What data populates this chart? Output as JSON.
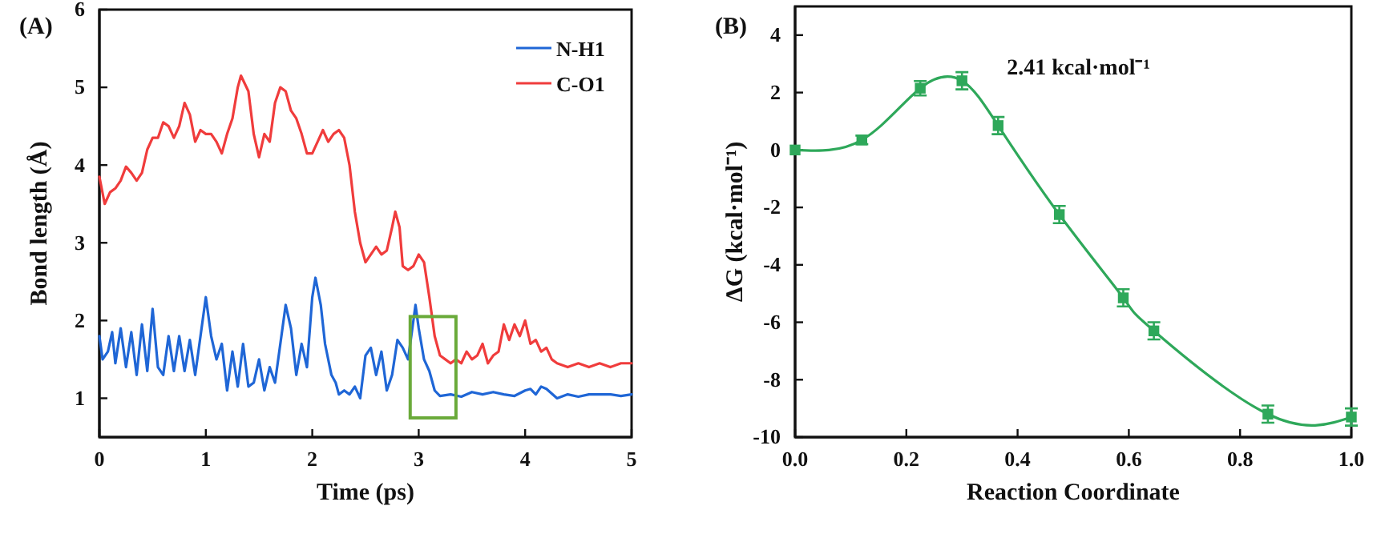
{
  "chart_data": [
    {
      "type": "line",
      "title": "(A)",
      "xlabel": "Time (ps)",
      "ylabel": "Bond length (Å)",
      "xlim": [
        0,
        5
      ],
      "ylim": [
        0.5,
        6
      ],
      "xticks": [
        0,
        1,
        2,
        3,
        4,
        5
      ],
      "yticks": [
        1,
        2,
        3,
        4,
        5,
        6
      ],
      "legend": "top right",
      "grid": false,
      "series": [
        {
          "name": "N-H1",
          "color": "#1f66d6",
          "x": [
            0,
            0.03,
            0.08,
            0.12,
            0.15,
            0.2,
            0.25,
            0.3,
            0.35,
            0.4,
            0.45,
            0.5,
            0.55,
            0.6,
            0.65,
            0.7,
            0.75,
            0.8,
            0.85,
            0.9,
            0.95,
            1.0,
            1.05,
            1.1,
            1.15,
            1.2,
            1.25,
            1.3,
            1.35,
            1.4,
            1.45,
            1.5,
            1.55,
            1.6,
            1.65,
            1.7,
            1.75,
            1.8,
            1.85,
            1.9,
            1.95,
            2.0,
            2.03,
            2.08,
            2.12,
            2.18,
            2.22,
            2.25,
            2.3,
            2.35,
            2.4,
            2.45,
            2.5,
            2.55,
            2.6,
            2.65,
            2.7,
            2.75,
            2.8,
            2.85,
            2.9,
            2.97,
            3.0,
            3.05,
            3.1,
            3.15,
            3.2,
            3.3,
            3.4,
            3.5,
            3.6,
            3.7,
            3.8,
            3.9,
            4.0,
            4.05,
            4.1,
            4.15,
            4.2,
            4.3,
            4.4,
            4.5,
            4.6,
            4.7,
            4.8,
            4.9,
            5.0
          ],
          "values": [
            1.8,
            1.5,
            1.6,
            1.85,
            1.45,
            1.9,
            1.4,
            1.85,
            1.3,
            1.95,
            1.35,
            2.15,
            1.4,
            1.3,
            1.8,
            1.35,
            1.8,
            1.35,
            1.75,
            1.3,
            1.8,
            2.3,
            1.8,
            1.5,
            1.7,
            1.1,
            1.6,
            1.15,
            1.7,
            1.15,
            1.2,
            1.5,
            1.1,
            1.4,
            1.2,
            1.7,
            2.2,
            1.9,
            1.3,
            1.7,
            1.4,
            2.3,
            2.55,
            2.2,
            1.7,
            1.3,
            1.2,
            1.05,
            1.1,
            1.05,
            1.15,
            1.0,
            1.55,
            1.65,
            1.3,
            1.6,
            1.1,
            1.3,
            1.75,
            1.65,
            1.5,
            2.2,
            1.9,
            1.5,
            1.35,
            1.1,
            1.03,
            1.05,
            1.02,
            1.08,
            1.05,
            1.08,
            1.05,
            1.03,
            1.1,
            1.12,
            1.05,
            1.15,
            1.12,
            1.0,
            1.05,
            1.02,
            1.05,
            1.05,
            1.05,
            1.03,
            1.05
          ]
        },
        {
          "name": "C-O1",
          "color": "#f03c3c",
          "x": [
            0,
            0.05,
            0.1,
            0.15,
            0.2,
            0.25,
            0.3,
            0.35,
            0.4,
            0.45,
            0.5,
            0.55,
            0.6,
            0.65,
            0.7,
            0.75,
            0.8,
            0.85,
            0.9,
            0.95,
            1.0,
            1.05,
            1.1,
            1.15,
            1.2,
            1.25,
            1.3,
            1.33,
            1.4,
            1.45,
            1.5,
            1.55,
            1.6,
            1.65,
            1.7,
            1.75,
            1.8,
            1.85,
            1.9,
            1.95,
            2.0,
            2.05,
            2.1,
            2.15,
            2.2,
            2.25,
            2.3,
            2.35,
            2.4,
            2.45,
            2.5,
            2.55,
            2.6,
            2.65,
            2.7,
            2.75,
            2.78,
            2.82,
            2.85,
            2.9,
            2.95,
            3.0,
            3.05,
            3.1,
            3.15,
            3.2,
            3.25,
            3.3,
            3.35,
            3.4,
            3.45,
            3.5,
            3.55,
            3.6,
            3.65,
            3.7,
            3.75,
            3.8,
            3.85,
            3.9,
            3.95,
            4.0,
            4.05,
            4.1,
            4.15,
            4.2,
            4.25,
            4.3,
            4.4,
            4.5,
            4.6,
            4.7,
            4.8,
            4.9,
            5.0
          ],
          "values": [
            3.85,
            3.5,
            3.65,
            3.7,
            3.8,
            3.98,
            3.9,
            3.8,
            3.9,
            4.2,
            4.35,
            4.35,
            4.55,
            4.5,
            4.35,
            4.5,
            4.8,
            4.65,
            4.3,
            4.45,
            4.4,
            4.4,
            4.3,
            4.15,
            4.4,
            4.6,
            5.0,
            5.15,
            4.95,
            4.4,
            4.1,
            4.4,
            4.3,
            4.8,
            5.0,
            4.95,
            4.7,
            4.6,
            4.4,
            4.15,
            4.15,
            4.3,
            4.45,
            4.3,
            4.4,
            4.45,
            4.35,
            4.0,
            3.4,
            3.0,
            2.75,
            2.85,
            2.95,
            2.85,
            2.9,
            3.2,
            3.4,
            3.2,
            2.7,
            2.65,
            2.7,
            2.85,
            2.75,
            2.3,
            1.8,
            1.55,
            1.5,
            1.45,
            1.5,
            1.45,
            1.6,
            1.5,
            1.55,
            1.7,
            1.45,
            1.55,
            1.6,
            1.95,
            1.75,
            1.95,
            1.8,
            2.0,
            1.7,
            1.75,
            1.6,
            1.65,
            1.5,
            1.45,
            1.4,
            1.45,
            1.4,
            1.45,
            1.4,
            1.45,
            1.45
          ]
        }
      ]
    },
    {
      "type": "line",
      "title": "(B)",
      "xlabel": "Reaction Coordinate",
      "ylabel": "ΔG (kcal·mol⁻¹)",
      "xlim": [
        0,
        1
      ],
      "ylim": [
        -10,
        5
      ],
      "xticks": [
        {
          "value": 0,
          "label": "0.0"
        },
        {
          "value": 0.2,
          "label": "0.2"
        },
        {
          "value": 0.4,
          "label": "0.4"
        },
        {
          "value": 0.6,
          "label": "0.6"
        },
        {
          "value": 0.8,
          "label": "0.8"
        },
        {
          "value": 1,
          "label": "1.0"
        }
      ],
      "yticks": [
        -10,
        -8,
        -6,
        -4,
        -2,
        0,
        2,
        4
      ],
      "marker": "square",
      "grid": false,
      "legend": false,
      "x": [
        0,
        0.12,
        0.225,
        0.3,
        0.365,
        0.475,
        0.59,
        0.645,
        0.85,
        1.0
      ],
      "series": [
        {
          "color": "#2ea85a",
          "values": [
            0,
            0.35,
            2.15,
            2.41,
            0.85,
            -2.25,
            -5.15,
            -6.3,
            -9.2,
            -9.3
          ],
          "errors": [
            null,
            0.15,
            0.25,
            0.3,
            0.3,
            0.3,
            0.3,
            0.3,
            0.3,
            0.3
          ]
        }
      ],
      "annotations": [
        {
          "text": "2.41  kcal·mol⁻¹",
          "x": 0.3,
          "y": 2.41
        }
      ]
    }
  ]
}
